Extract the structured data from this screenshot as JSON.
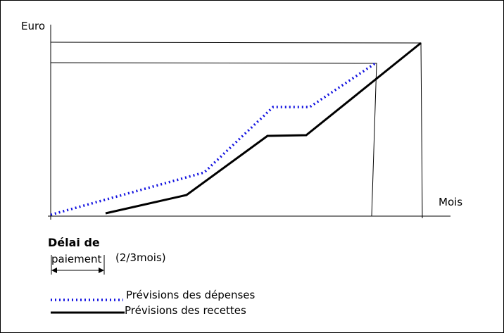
{
  "axes": {
    "y_label": "Euro",
    "x_label": "Mois"
  },
  "delay": {
    "title": "Délai de",
    "label": "paiement",
    "note": "(2/3mois)"
  },
  "legend": {
    "expenses": "Prévisions des dépenses",
    "revenues": "Prévisions des recettes"
  }
}
